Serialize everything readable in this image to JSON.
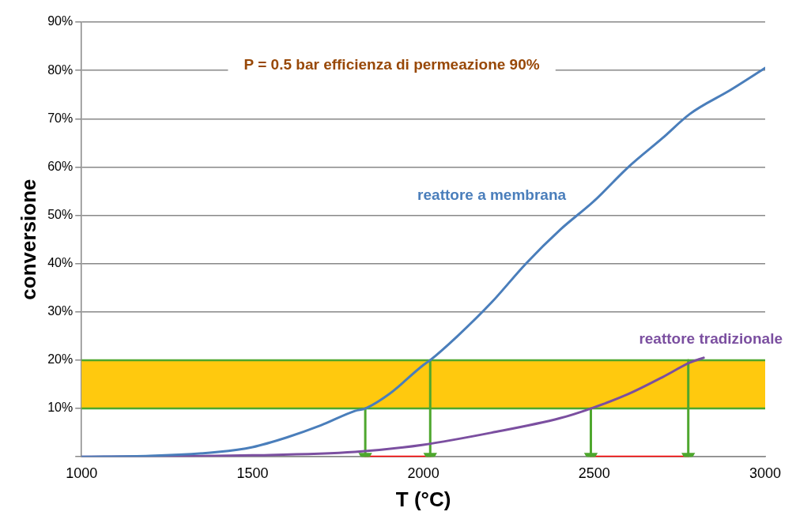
{
  "chart_data": {
    "type": "line",
    "title": "P = 0.5 bar efficienza di permeazione 90%",
    "xlabel": "T (°C)",
    "ylabel": "conversione",
    "xlim": [
      1000,
      3000
    ],
    "xticks": [
      1000,
      1500,
      2000,
      2500,
      3000
    ],
    "ylim": [
      0,
      90
    ],
    "yticks": [
      {
        "value": 0,
        "label": null
      },
      {
        "value": 10,
        "label": "10%"
      },
      {
        "value": 20,
        "label": "20%"
      },
      {
        "value": 30,
        "label": "30%"
      },
      {
        "value": 40,
        "label": "40%"
      },
      {
        "value": 50,
        "label": "50%"
      },
      {
        "value": 60,
        "label": "60%"
      },
      {
        "value": 70,
        "label": "70%"
      },
      {
        "value": 80,
        "label": "80%"
      },
      {
        "value": 90,
        "label": "90%"
      }
    ],
    "grid": "y",
    "legend": false,
    "marker": "none",
    "line_style": "solid",
    "bands": [
      {
        "axis": "y",
        "from": 10,
        "to": 20,
        "color": "#ffc90e"
      }
    ],
    "ref_lines": [
      {
        "axis": "y",
        "value": 10,
        "color": "#4ea72e"
      },
      {
        "axis": "y",
        "value": 20,
        "color": "#4ea72e"
      }
    ],
    "series": [
      {
        "name": "reattore a membrana",
        "color": "#4a7ebb",
        "x": [
          1000,
          1200,
          1400,
          1500,
          1600,
          1700,
          1800,
          1830,
          1900,
          2000,
          2020,
          2100,
          2200,
          2300,
          2400,
          2500,
          2600,
          2700,
          2780,
          2900,
          3000
        ],
        "values": [
          0,
          0.2,
          1,
          2,
          4,
          6.5,
          9.5,
          10,
          13,
          19,
          20,
          25,
          32,
          40,
          47,
          53,
          60,
          66,
          71,
          76,
          80.5
        ]
      },
      {
        "name": "reattore tradizionale",
        "color": "#7b4fa0",
        "x": [
          1000,
          1500,
          1800,
          2000,
          2200,
          2400,
          2490,
          2600,
          2700,
          2780,
          2820
        ],
        "values": [
          0,
          0.3,
          1,
          2.5,
          5,
          8,
          10,
          13,
          16.5,
          19.5,
          20.5
        ]
      },
      {
        "color": "#4ea72e",
        "marker": "triangle",
        "x": [
          1830,
          1830
        ],
        "values": [
          10,
          0
        ]
      },
      {
        "color": "#4ea72e",
        "marker": "triangle",
        "x": [
          2020,
          2020
        ],
        "values": [
          20,
          0
        ]
      },
      {
        "color": "#4ea72e",
        "marker": "triangle",
        "x": [
          2490,
          2490
        ],
        "values": [
          10,
          0
        ]
      },
      {
        "color": "#4ea72e",
        "marker": "triangle",
        "x": [
          2775,
          2775
        ],
        "values": [
          20,
          0
        ]
      },
      {
        "color": "#ff0000",
        "x": [
          1830,
          2020
        ],
        "values": [
          0,
          0
        ]
      },
      {
        "color": "#ff0000",
        "x": [
          2490,
          2775
        ],
        "values": [
          0,
          0
        ]
      }
    ]
  }
}
